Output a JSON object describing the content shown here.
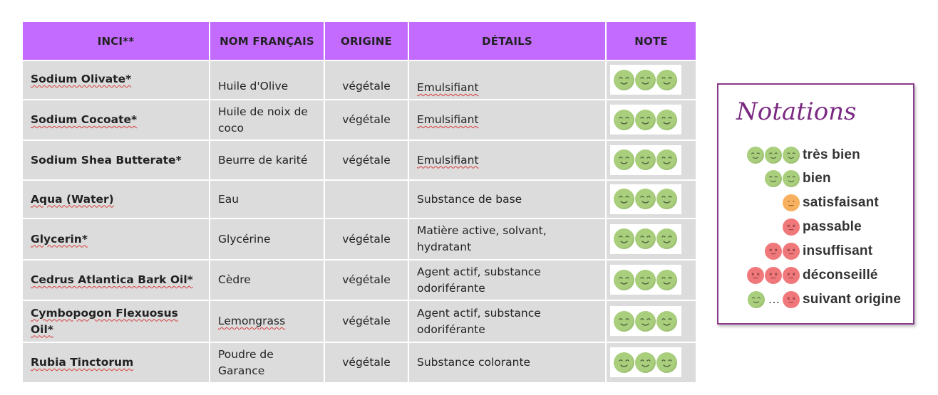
{
  "table": {
    "headers": [
      "INCI**",
      "NOM FRANÇAIS",
      "ORIGINE",
      "DÉTAILS",
      "NOTE"
    ],
    "rows": [
      {
        "inci": "Sodium Olivate*",
        "nom": "Huile d'Olive",
        "origine": "végétale",
        "details": "Emulsifiant",
        "note": 3
      },
      {
        "inci": "Sodium Cocoate*",
        "nom": "Huile de noix de coco",
        "origine": "végétale",
        "details": "Emulsifiant",
        "note": 3
      },
      {
        "inci": "Sodium Shea Butterate*",
        "nom": "Beurre de karité",
        "origine": "végétale",
        "details": "Emulsifiant",
        "note": 3
      },
      {
        "inci": "Aqua (Water)",
        "nom": "Eau",
        "origine": "",
        "details": "Substance de base",
        "note": 3
      },
      {
        "inci": "Glycerin*",
        "nom": "Glycérine",
        "origine": "végétale",
        "details": "Matière active, solvant, hydratant",
        "note": 3
      },
      {
        "inci": "Cedrus Atlantica Bark Oil*",
        "nom": "Cèdre",
        "origine": "végétale",
        "details": "Agent actif, substance odoriférante",
        "note": 3
      },
      {
        "inci": "Cymbopogon Flexuosus Oil*",
        "nom": "Lemongrass",
        "origine": "végétale",
        "details": "Agent actif, substance odoriférante",
        "note": 3
      },
      {
        "inci": "Rubia Tinctorum",
        "nom": "Poudre de Garance",
        "origine": "végétale",
        "details": "Substance colorante",
        "note": 3
      }
    ]
  },
  "legend": {
    "title": "Notations",
    "items": [
      {
        "label": "très bien",
        "faces": [
          "happy",
          "happy",
          "happy"
        ]
      },
      {
        "label": "bien",
        "faces": [
          "happy",
          "happy"
        ]
      },
      {
        "label": "satisfaisant",
        "faces": [
          "neutral"
        ]
      },
      {
        "label": "passable",
        "faces": [
          "bad"
        ]
      },
      {
        "label": "insuffisant",
        "faces": [
          "bad",
          "bad"
        ]
      },
      {
        "label": "déconseillé",
        "faces": [
          "bad",
          "bad",
          "bad"
        ]
      },
      {
        "label": "suivant origine",
        "faces": [
          "happy",
          "ellipsis",
          "bad"
        ],
        "separator": "…"
      }
    ]
  },
  "colors": {
    "header_bg": "#c36bff",
    "cell_bg": "#dcdcdc",
    "happy": "#a9cf7d",
    "neutral": "#f7b15e",
    "bad": "#f0787a",
    "legend_border": "#8b3a8b",
    "legend_title": "#7b2a82"
  },
  "icons": {
    "happy": "smiley-happy-green-icon",
    "neutral": "smiley-neutral-orange-icon",
    "bad": "smiley-dead-red-icon"
  }
}
